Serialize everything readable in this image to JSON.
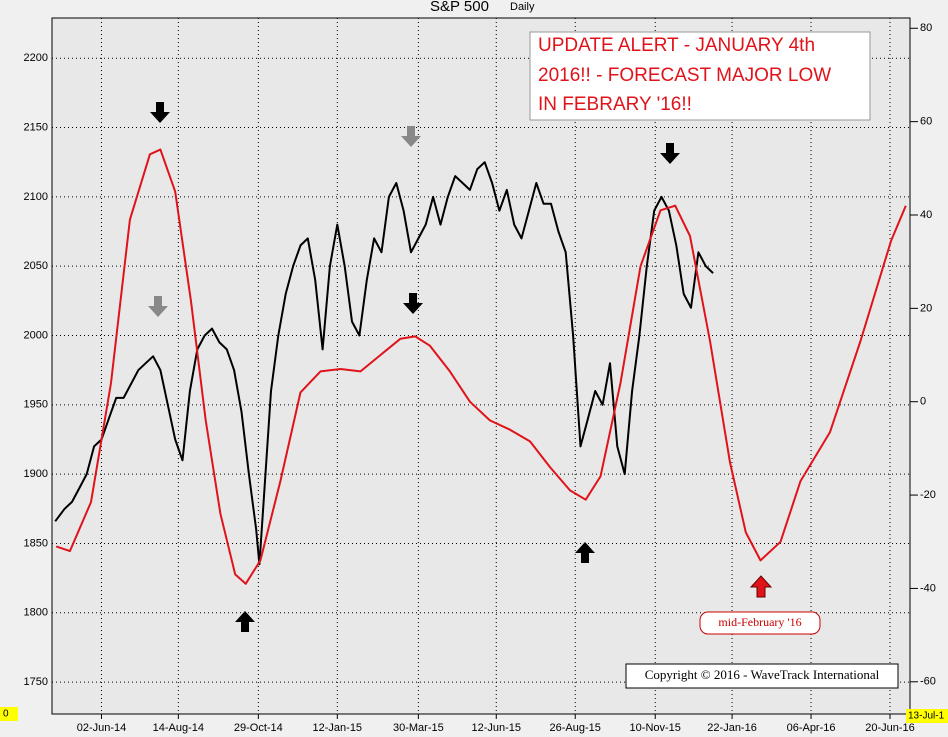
{
  "chart_data": {
    "type": "line",
    "title": "S&P 500",
    "subtitle": "Daily",
    "annotations": {
      "alert": [
        "UPDATE ALERT - JANUARY 4th",
        "2016!! - FORECAST MAJOR LOW",
        "IN FEBRARY '16!!"
      ],
      "low_label": "mid-February '16",
      "copyright": "Copyright © 2016 - WaveTrack International",
      "left_corner": "0",
      "right_corner": "13-Jul-1"
    },
    "xlim": [
      -47,
      768
    ],
    "xticks": [
      {
        "value": 0,
        "label": "02-Jun-14"
      },
      {
        "value": 73,
        "label": "14-Aug-14"
      },
      {
        "value": 149,
        "label": "29-Oct-14"
      },
      {
        "value": 224,
        "label": "12-Jan-15"
      },
      {
        "value": 301,
        "label": "30-Mar-15"
      },
      {
        "value": 375,
        "label": "12-Jun-15"
      },
      {
        "value": 450,
        "label": "26-Aug-15"
      },
      {
        "value": 526,
        "label": "10-Nov-15"
      },
      {
        "value": 599,
        "label": "22-Jan-16"
      },
      {
        "value": 674,
        "label": "06-Apr-16"
      },
      {
        "value": 749,
        "label": "20-Jun-16"
      }
    ],
    "ylim": [
      1727,
      2229
    ],
    "yticks": [
      1750,
      1800,
      1850,
      1900,
      1950,
      2000,
      2050,
      2100,
      2150,
      2200
    ],
    "y2lim": [
      -66.9,
      82.2
    ],
    "y2ticks": [
      -60,
      -40,
      -20,
      0,
      20,
      40,
      60,
      80
    ],
    "grid": true,
    "series": [
      {
        "color": "#000000",
        "x": [
          -44,
          -35,
          -28,
          -21,
          -14,
          -7,
          0,
          7,
          14,
          21,
          28,
          35,
          42,
          49,
          56,
          63,
          70,
          77,
          84,
          91,
          98,
          105,
          112,
          119,
          126,
          133,
          140,
          147,
          150,
          154,
          161,
          168,
          175,
          182,
          189,
          196,
          203,
          210,
          217,
          224,
          231,
          238,
          245,
          252,
          259,
          266,
          273,
          280,
          287,
          294,
          301,
          308,
          315,
          322,
          329,
          336,
          343,
          350,
          357,
          364,
          371,
          378,
          385,
          392,
          399,
          406,
          413,
          420,
          427,
          434,
          441,
          448,
          455,
          462,
          469,
          476,
          483,
          490,
          497,
          504,
          511,
          518,
          525,
          532,
          539,
          546,
          553,
          560,
          567,
          574,
          581
        ],
        "values": [
          1866,
          1875,
          1880,
          1890,
          1900,
          1920,
          1925,
          1940,
          1955,
          1955,
          1965,
          1975,
          1980,
          1985,
          1975,
          1950,
          1925,
          1910,
          1960,
          1990,
          2000,
          2005,
          1995,
          1990,
          1975,
          1945,
          1900,
          1860,
          1835,
          1880,
          1960,
          2000,
          2030,
          2050,
          2065,
          2070,
          2040,
          1990,
          2050,
          2080,
          2050,
          2010,
          2000,
          2040,
          2070,
          2060,
          2100,
          2110,
          2090,
          2060,
          2070,
          2080,
          2100,
          2080,
          2100,
          2115,
          2110,
          2105,
          2120,
          2125,
          2110,
          2090,
          2105,
          2080,
          2070,
          2090,
          2110,
          2095,
          2095,
          2075,
          2060,
          2000,
          1920,
          1940,
          1960,
          1950,
          1980,
          1920,
          1900,
          1960,
          2000,
          2050,
          2090,
          2100,
          2090,
          2065,
          2030,
          2020,
          2060,
          2050,
          2045
        ]
      },
      {
        "color": "#e0131a",
        "axis": "y2",
        "x": [
          -43,
          -30,
          -10,
          9,
          27,
          46,
          56,
          70,
          85,
          99,
          113,
          127,
          137,
          151,
          170,
          189,
          208,
          227,
          246,
          265,
          284,
          298,
          312,
          331,
          350,
          369,
          388,
          407,
          426,
          445,
          460,
          474,
          493,
          512,
          531,
          545,
          559,
          578,
          597,
          612,
          626,
          645,
          664,
          692,
          721,
          750,
          764
        ],
        "values": [
          -31,
          -32,
          -21.5,
          4,
          39,
          53,
          54,
          45,
          21.5,
          -4,
          -24,
          -37,
          -39,
          -34,
          -17,
          2,
          6.5,
          7,
          6.5,
          10,
          13.5,
          14,
          12,
          6.5,
          0,
          -4,
          -6,
          -8.5,
          -14,
          -19,
          -21,
          -16,
          4,
          29,
          41,
          42,
          35.5,
          13,
          -13,
          -28,
          -34,
          -30,
          -17,
          -6.5,
          13,
          34.5,
          42
        ]
      }
    ]
  }
}
